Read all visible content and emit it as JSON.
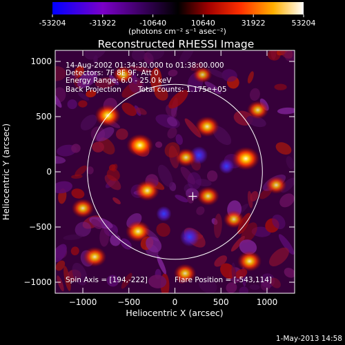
{
  "colorbar": {
    "tick_labels": [
      "-53204",
      "-31922",
      "-10640",
      "10640",
      "31922",
      "53204"
    ],
    "tick_values": [
      -53204,
      -31922,
      -10640,
      10640,
      31922,
      53204
    ],
    "range": [
      -53204,
      53204
    ],
    "units_label": "(photons cm⁻² s⁻¹ asec⁻²)",
    "colors": [
      "#0000ff",
      "#7a00c8",
      "#000000",
      "#a00000",
      "#ff3000",
      "#ffb000",
      "#ffffff"
    ]
  },
  "image": {
    "title": "Reconstructed RHESSI Image",
    "annotations": {
      "time_range": "14-Aug-2002 01:34:30.000 to 01:38:00.000",
      "detectors": "Detectors: 7F 8F 9F, Att 0",
      "energy_range": "Energy Range: 6.0 - 25.0 keV",
      "method": "Back Projection",
      "total_counts": "Total counts: 1.175e+05",
      "spin_axis": "Spin Axis = [194,-222]",
      "flare_position": "Flare Position = [-543,114]"
    },
    "footer_timestamp": "1-May-2013 14:58"
  },
  "chart_data": {
    "type": "heatmap",
    "title": "Reconstructed RHESSI Image",
    "xlabel": "Heliocentric X (arcsec)",
    "ylabel": "Heliocentric Y (arcsec)",
    "xlim": [
      -1300,
      1300
    ],
    "ylim": [
      -1100,
      1100
    ],
    "x_ticks": [
      -1000,
      -500,
      0,
      500,
      1000
    ],
    "y_ticks": [
      -1000,
      -500,
      0,
      500,
      1000
    ],
    "x_tick_labels": [
      "−1000",
      "−500",
      "0",
      "500",
      "1000"
    ],
    "y_tick_labels": [
      "1000",
      "500",
      "0",
      "−500",
      "−1000"
    ],
    "solar_limb": {
      "center": [
        0,
        0
      ],
      "radius": 950
    },
    "spin_axis": [
      194,
      -222
    ],
    "bright_sources": [
      {
        "x": 770,
        "y": 120,
        "level": 1.0
      },
      {
        "x": -380,
        "y": 240,
        "level": 0.95
      },
      {
        "x": -730,
        "y": 510,
        "level": 0.9
      },
      {
        "x": 350,
        "y": 410,
        "level": 0.8
      },
      {
        "x": -400,
        "y": -540,
        "level": 0.85
      },
      {
        "x": 810,
        "y": -810,
        "level": 0.8
      },
      {
        "x": -300,
        "y": -170,
        "level": 0.8
      },
      {
        "x": 360,
        "y": -220,
        "level": 0.7
      },
      {
        "x": 120,
        "y": 130,
        "level": 0.65
      },
      {
        "x": -1000,
        "y": -330,
        "level": 0.7
      },
      {
        "x": 900,
        "y": 560,
        "level": 0.65
      },
      {
        "x": -870,
        "y": -770,
        "level": 0.75
      },
      {
        "x": 110,
        "y": -920,
        "level": 0.7
      },
      {
        "x": 1100,
        "y": -120,
        "level": 0.6
      },
      {
        "x": -560,
        "y": 880,
        "level": 0.6
      },
      {
        "x": 640,
        "y": -430,
        "level": 0.6
      },
      {
        "x": 300,
        "y": 880,
        "level": 0.5
      }
    ],
    "negative_sources": [
      {
        "x": 160,
        "y": -590,
        "level": 0.6
      },
      {
        "x": 260,
        "y": 150,
        "level": 0.5
      },
      {
        "x": -120,
        "y": -380,
        "level": 0.3
      },
      {
        "x": 560,
        "y": 50,
        "level": 0.3
      }
    ]
  }
}
